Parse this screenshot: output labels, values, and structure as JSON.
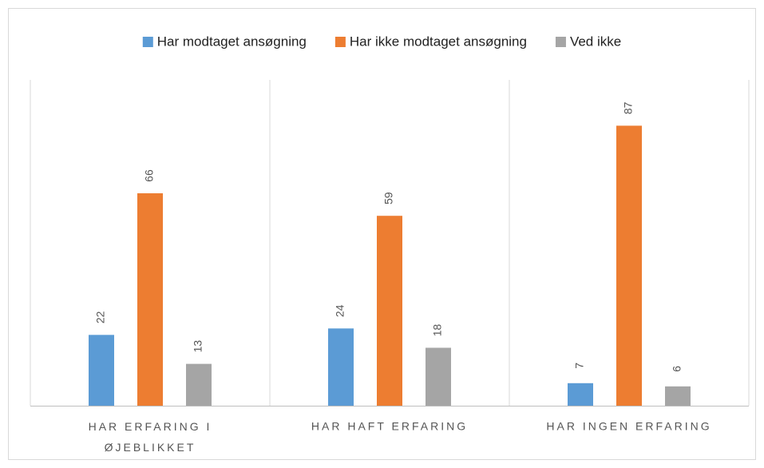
{
  "chart_data": {
    "type": "bar",
    "categories": [
      "HAR ERFARING I ØJEBLIKKET",
      "HAR HAFT ERFARING",
      "HAR INGEN ERFARING"
    ],
    "series": [
      {
        "name": "Har modtaget ansøgning",
        "color": "#5b9bd5",
        "values": [
          22,
          24,
          7
        ]
      },
      {
        "name": "Har ikke modtaget ansøgning",
        "color": "#ed7d31",
        "values": [
          66,
          59,
          87
        ]
      },
      {
        "name": "Ved ikke",
        "color": "#a5a5a5",
        "values": [
          13,
          18,
          6
        ]
      }
    ],
    "legend": "top"
  }
}
